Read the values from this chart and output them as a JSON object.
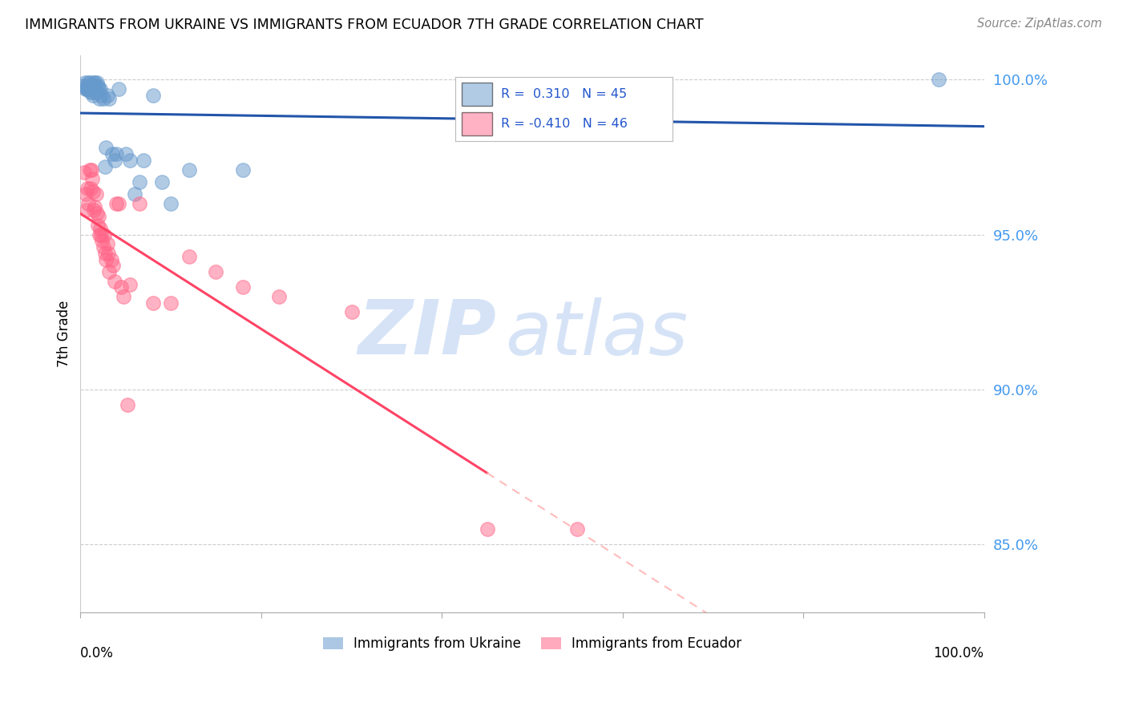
{
  "title": "IMMIGRANTS FROM UKRAINE VS IMMIGRANTS FROM ECUADOR 7TH GRADE CORRELATION CHART",
  "source": "Source: ZipAtlas.com",
  "ylabel": "7th Grade",
  "xlim": [
    0.0,
    1.0
  ],
  "ylim": [
    0.828,
    1.008
  ],
  "yticks": [
    0.85,
    0.9,
    0.95,
    1.0
  ],
  "ytick_labels": [
    "85.0%",
    "90.0%",
    "95.0%",
    "100.0%"
  ],
  "ukraine_color": "#6699cc",
  "ecuador_color": "#ff6688",
  "trend_ukraine_color": "#2255aa",
  "trend_ecuador_color": "#ff4466",
  "trend_ecuador_dashed_color": "#ffbbbb",
  "R_ukraine": 0.31,
  "N_ukraine": 45,
  "R_ecuador": -0.41,
  "N_ecuador": 46,
  "ukraine_x": [
    0.003,
    0.005,
    0.006,
    0.007,
    0.008,
    0.008,
    0.009,
    0.009,
    0.01,
    0.01,
    0.011,
    0.012,
    0.013,
    0.014,
    0.015,
    0.015,
    0.015,
    0.016,
    0.017,
    0.018,
    0.019,
    0.02,
    0.021,
    0.022,
    0.023,
    0.025,
    0.027,
    0.028,
    0.03,
    0.032,
    0.035,
    0.038,
    0.04,
    0.042,
    0.05,
    0.055,
    0.06,
    0.065,
    0.07,
    0.08,
    0.09,
    0.1,
    0.12,
    0.18,
    0.95
  ],
  "ukraine_y": [
    0.998,
    0.999,
    0.997,
    0.997,
    0.998,
    0.997,
    0.999,
    0.997,
    0.999,
    0.997,
    0.996,
    0.997,
    0.996,
    0.995,
    0.999,
    0.998,
    0.997,
    0.999,
    0.996,
    0.999,
    0.998,
    0.997,
    0.994,
    0.997,
    0.995,
    0.994,
    0.972,
    0.978,
    0.995,
    0.994,
    0.976,
    0.974,
    0.976,
    0.997,
    0.976,
    0.974,
    0.963,
    0.967,
    0.974,
    0.995,
    0.967,
    0.96,
    0.971,
    0.971,
    1.0
  ],
  "ecuador_x": [
    0.004,
    0.006,
    0.007,
    0.008,
    0.009,
    0.01,
    0.011,
    0.012,
    0.013,
    0.014,
    0.015,
    0.016,
    0.017,
    0.018,
    0.019,
    0.02,
    0.021,
    0.022,
    0.023,
    0.024,
    0.025,
    0.026,
    0.027,
    0.028,
    0.03,
    0.031,
    0.032,
    0.034,
    0.036,
    0.038,
    0.04,
    0.042,
    0.045,
    0.048,
    0.052,
    0.055,
    0.065,
    0.08,
    0.1,
    0.12,
    0.15,
    0.18,
    0.22,
    0.3,
    0.45,
    0.55
  ],
  "ecuador_y": [
    0.97,
    0.963,
    0.958,
    0.965,
    0.96,
    0.971,
    0.965,
    0.971,
    0.968,
    0.964,
    0.958,
    0.959,
    0.963,
    0.957,
    0.953,
    0.956,
    0.95,
    0.952,
    0.95,
    0.948,
    0.946,
    0.95,
    0.944,
    0.942,
    0.947,
    0.944,
    0.938,
    0.942,
    0.94,
    0.935,
    0.96,
    0.96,
    0.933,
    0.93,
    0.895,
    0.934,
    0.96,
    0.928,
    0.928,
    0.943,
    0.938,
    0.933,
    0.93,
    0.925,
    0.855,
    0.855
  ],
  "watermark_zip": "ZIP",
  "watermark_atlas": "atlas",
  "background_color": "#ffffff",
  "grid_color": "#cccccc",
  "trend_line_start_ukraine": 0.0,
  "trend_line_end_ukraine": 1.0,
  "trend_line_start_ecuador": 0.0,
  "trend_line_end_ecuador_solid": 0.45,
  "trend_line_end_ecuador_dashed": 1.0
}
